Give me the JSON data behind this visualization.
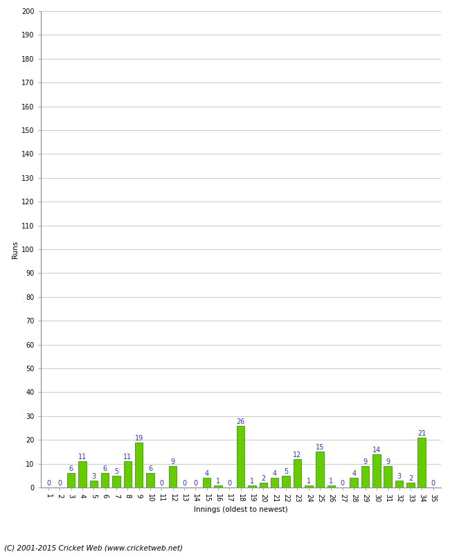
{
  "innings": [
    1,
    2,
    3,
    4,
    5,
    6,
    7,
    8,
    9,
    10,
    11,
    12,
    13,
    14,
    15,
    16,
    17,
    18,
    19,
    20,
    21,
    22,
    23,
    24,
    25,
    26,
    27,
    28,
    29,
    30,
    31,
    32,
    33,
    34,
    35
  ],
  "runs": [
    0,
    0,
    6,
    11,
    3,
    6,
    5,
    11,
    19,
    6,
    0,
    9,
    0,
    0,
    4,
    1,
    0,
    26,
    1,
    2,
    4,
    5,
    12,
    1,
    15,
    1,
    0,
    4,
    9,
    14,
    9,
    3,
    2,
    21,
    0
  ],
  "bar_color": "#66cc00",
  "bar_edge_color": "#228800",
  "label_color": "#3333aa",
  "ylabel": "Runs",
  "xlabel": "Innings (oldest to newest)",
  "ylim": [
    0,
    200
  ],
  "yticks": [
    0,
    10,
    20,
    30,
    40,
    50,
    60,
    70,
    80,
    90,
    100,
    110,
    120,
    130,
    140,
    150,
    160,
    170,
    180,
    190,
    200
  ],
  "grid_color": "#cccccc",
  "background_color": "#ffffff",
  "footer": "(C) 2001-2015 Cricket Web (www.cricketweb.net)",
  "label_fontsize": 7,
  "axis_fontsize": 7.5,
  "footer_fontsize": 7.5,
  "tick_fontsize": 7
}
